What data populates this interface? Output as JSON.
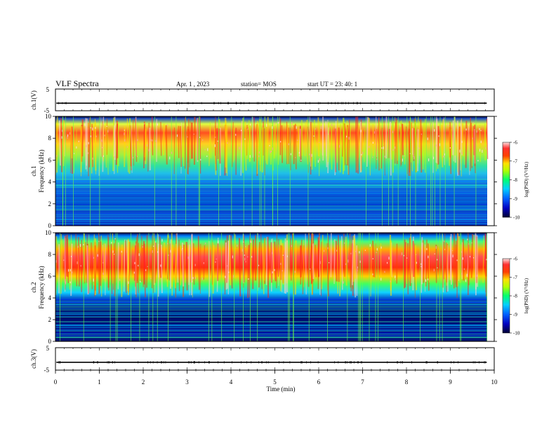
{
  "header": {
    "title": "VLF Spectra",
    "date": "Apr. 1 , 2023",
    "station": "station= MOS",
    "start": "start UT = 23: 40: 1"
  },
  "chart_data": [
    {
      "type": "line",
      "panel": "ch1-waveform",
      "ylabel": "ch.1(V)",
      "ylim": [
        -5,
        5
      ],
      "yticks": [
        "5",
        "-5"
      ],
      "baseline": -1.5
    },
    {
      "type": "heatmap",
      "panel": "ch1-spectrogram",
      "ylabel_line1": "ch.1",
      "ylabel_line2": "Frequency (kHz)",
      "ylim": [
        0,
        10
      ],
      "yticks": [
        "0",
        "2",
        "4",
        "6",
        "8",
        "10"
      ],
      "colorbar": {
        "label": "log(PSD) (V²/Hz)",
        "ticks": [
          "-6",
          "-7",
          "-8",
          "-9",
          "-10"
        ],
        "range": [
          -10,
          -6
        ]
      },
      "emission_band_khz": [
        4.5,
        10
      ],
      "description_shape": "broadband chorus-like emissions"
    },
    {
      "type": "heatmap",
      "panel": "ch2-spectrogram",
      "ylabel_line1": "ch.2",
      "ylabel_line2": "Frequency (kHz)",
      "ylim": [
        0,
        10
      ],
      "yticks": [
        "0",
        "2",
        "4",
        "6",
        "8",
        "10"
      ],
      "colorbar": {
        "label": "log(PSD) (V²/Hz)",
        "ticks": [
          "-6",
          "-7",
          "-8",
          "-9",
          "-10"
        ],
        "range": [
          -10,
          -6
        ]
      },
      "emission_band_khz": [
        4,
        10
      ]
    },
    {
      "type": "line",
      "panel": "ch3-waveform",
      "ylabel": "ch.3(V)",
      "ylim": [
        -5,
        5
      ],
      "yticks": [
        "5",
        "-5"
      ],
      "baseline": -1.5
    }
  ],
  "xaxis": {
    "label": "Time (min)",
    "range": [
      0,
      10
    ],
    "ticks": [
      "0",
      "1",
      "2",
      "3",
      "4",
      "5",
      "6",
      "7",
      "8",
      "9",
      "10"
    ]
  },
  "colors": {
    "cmap": [
      "#000033",
      "#0000c0",
      "#0050ff",
      "#00c8ff",
      "#00ff60",
      "#c8ff00",
      "#ffe000",
      "#ff4000",
      "#ff2020",
      "#ffd0d0"
    ]
  }
}
